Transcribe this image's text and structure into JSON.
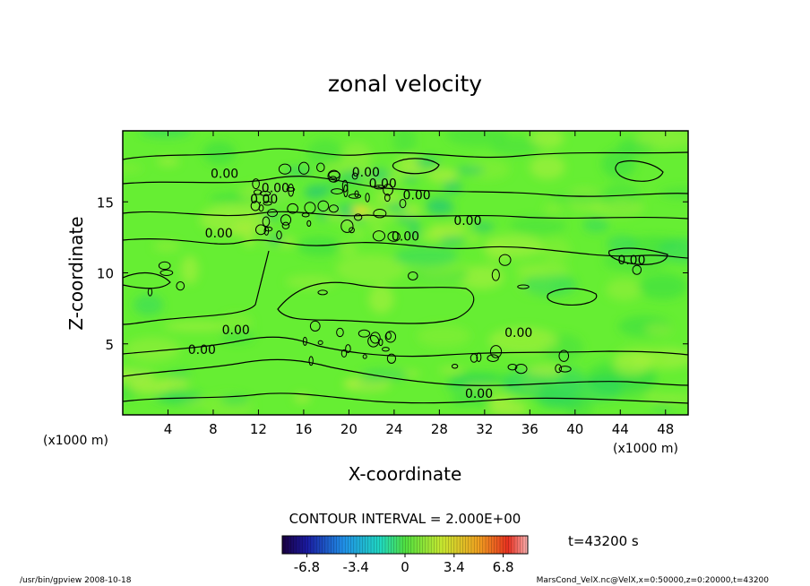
{
  "chart_data": {
    "type": "heatmap",
    "title": "zonal velocity",
    "xlabel": "X-coordinate",
    "ylabel": "Z-coordinate",
    "x_unit": "(x1000 m)",
    "y_unit": "(x1000 m)",
    "xlim": [
      0,
      50
    ],
    "ylim": [
      0,
      20
    ],
    "x_ticks": [
      4,
      8,
      12,
      16,
      20,
      24,
      28,
      32,
      36,
      40,
      44,
      48
    ],
    "y_ticks": [
      5,
      10,
      15
    ],
    "contour_interval_text": "CONTOUR INTERVAL = 2.000E+00",
    "time_text": "t=43200 s",
    "colorbar": {
      "range": [
        -8.5,
        8.5
      ],
      "tick_labels": [
        "-6.8",
        "-3.4",
        "0",
        "3.4",
        "6.8"
      ],
      "tick_values": [
        -6.8,
        -3.4,
        0,
        3.4,
        6.8
      ]
    },
    "contour_labels": [
      {
        "text": "0.00",
        "x": 9.0,
        "z": 17.0
      },
      {
        "text": "0.00",
        "x": 13.5,
        "z": 16.0
      },
      {
        "text": "0.00",
        "x": 12.5,
        "z": 15.2
      },
      {
        "text": "0.00",
        "x": 21.5,
        "z": 17.1
      },
      {
        "text": "0.00",
        "x": 23.0,
        "z": 16.3
      },
      {
        "text": "0.00",
        "x": 26.0,
        "z": 15.5
      },
      {
        "text": "0.00",
        "x": 30.5,
        "z": 13.7
      },
      {
        "text": "0.00",
        "x": 8.5,
        "z": 12.8
      },
      {
        "text": "0.00",
        "x": 25.0,
        "z": 12.6
      },
      {
        "text": "0.00",
        "x": 45.0,
        "z": 10.9
      },
      {
        "text": "0.00",
        "x": 10.0,
        "z": 6.0
      },
      {
        "text": "0.00",
        "x": 7.0,
        "z": 4.6
      },
      {
        "text": "0.00",
        "x": 35.0,
        "z": 5.8
      },
      {
        "text": "0.00",
        "x": 31.5,
        "z": 1.5
      }
    ],
    "max_spot": {
      "x": 21.0,
      "z": 14.4
    }
  },
  "footer": {
    "left": "/usr/bin/gpview   2008-10-18",
    "right": "MarsCond_VelX.nc@VelX,x=0:50000,z=0:20000,t=43200"
  },
  "colors": {
    "field_base": "#66ee33",
    "contour": "#000000"
  }
}
